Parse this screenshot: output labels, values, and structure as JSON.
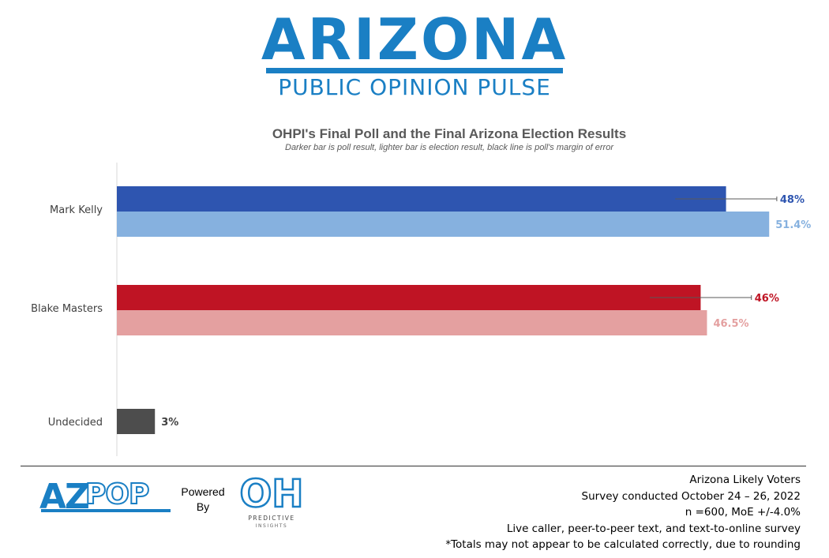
{
  "header": {
    "brand_word": "ARIZONA",
    "brand_sub": "PUBLIC OPINION PULSE"
  },
  "colors": {
    "brand_blue": "#1a7fc4",
    "kelly_poll": "#2e55b0",
    "kelly_result": "#86b1df",
    "masters_poll": "#bf1424",
    "masters_result": "#e4a0a0",
    "undecided": "#4d4d4d",
    "moe_line": "#595959"
  },
  "chart_data": {
    "type": "bar",
    "orientation": "horizontal",
    "title": "OHPI's Final Poll and the Final Arizona Election Results",
    "subtitle": "Darker bar is poll result, lighter bar is election result, black line is poll's margin of error",
    "categories": [
      "Mark Kelly",
      "Blake Masters",
      "Undecided"
    ],
    "series": [
      {
        "values": [
          48,
          46,
          3
        ],
        "labels": [
          "48%",
          "46%",
          "3%"
        ]
      },
      {
        "values": [
          51.4,
          46.5,
          null
        ],
        "labels": [
          "51.4%",
          "46.5%",
          ""
        ]
      }
    ],
    "margin_of_error": 4.0,
    "xlim": [
      0,
      53.5
    ],
    "grid": false
  },
  "footer": {
    "logo_az_left": "AZ",
    "logo_az_right": "POP",
    "powered_by": "Powered By",
    "logo_oh": "OH",
    "logo_oh_line1": "PREDICTIVE",
    "logo_oh_line2": "INSIGHTS",
    "notes": [
      "Arizona Likely Voters",
      "Survey conducted October 24 – 26, 2022",
      "n =600, MoE +/-4.0%",
      "Live caller, peer-to-peer text, and text-to-online survey",
      "*Totals may not appear to be calculated correctly, due to rounding"
    ]
  }
}
